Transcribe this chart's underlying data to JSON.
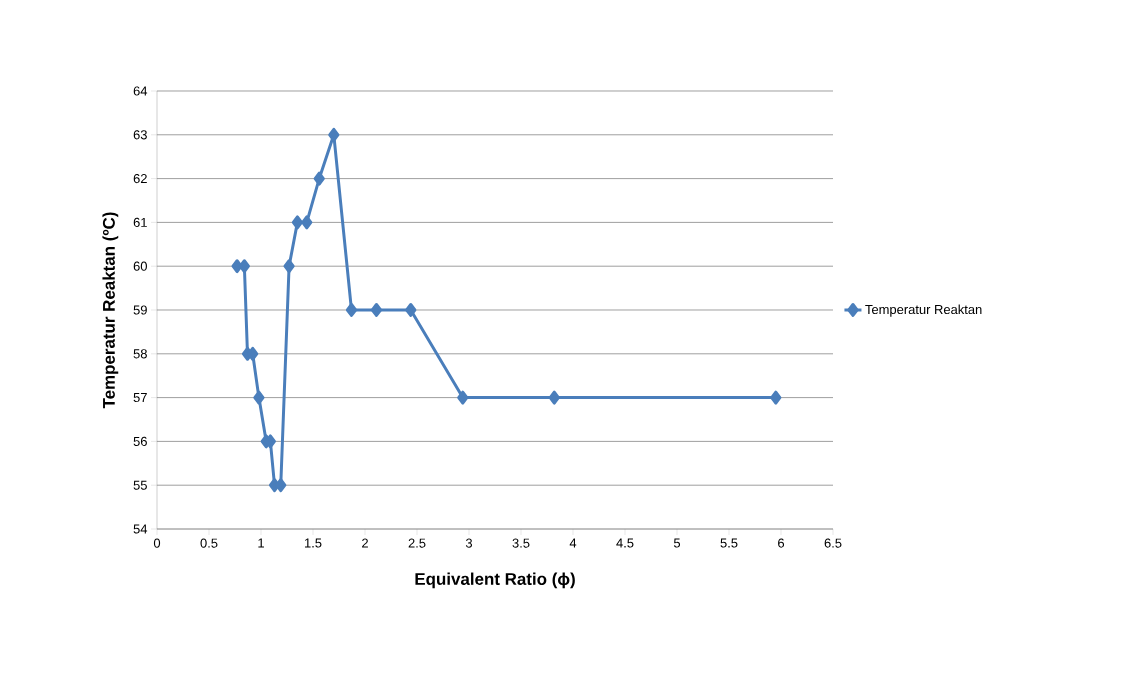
{
  "chart_data": {
    "type": "line",
    "xlabel": "Equivalent Ratio (ϕ)",
    "ylabel": "Temperatur Reaktan (ºC)",
    "series": [
      {
        "name": "Temperatur Reaktan",
        "color": "#4a7ebb",
        "x": [
          0.77,
          0.84,
          0.87,
          0.92,
          0.98,
          1.05,
          1.09,
          1.13,
          1.19,
          1.27,
          1.35,
          1.44,
          1.56,
          1.7,
          1.87,
          2.11,
          2.44,
          2.94,
          3.82,
          5.95
        ],
        "values": [
          60,
          60,
          58,
          58,
          57,
          56,
          56,
          55,
          55,
          60,
          61,
          61,
          62,
          63,
          59,
          59,
          59,
          57,
          57,
          57
        ]
      }
    ],
    "xlim": [
      0,
      6.5
    ],
    "xticks": [
      0,
      0.5,
      1,
      1.5,
      2,
      2.5,
      3,
      3.5,
      4,
      4.5,
      5,
      5.5,
      6,
      6.5
    ],
    "ylim": [
      54,
      64
    ],
    "yticks": [
      54,
      55,
      56,
      57,
      58,
      59,
      60,
      61,
      62,
      63,
      64
    ],
    "grid": "y",
    "legend": "right",
    "marker": "diamond",
    "line_style": "solid"
  }
}
